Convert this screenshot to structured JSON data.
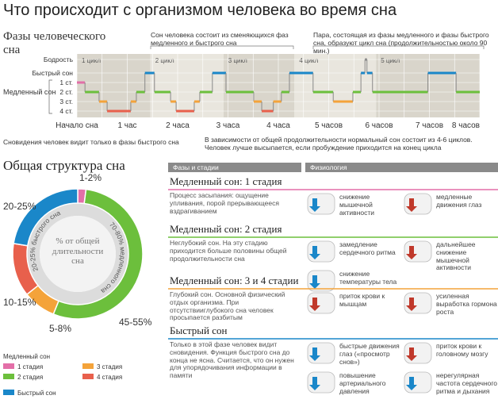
{
  "title": "Что происходит с организмом человека во время сна",
  "hypnogram": {
    "heading": "Фазы человеческого сна",
    "levels": [
      "Бодрость",
      "Быстрый сон",
      "1 ст.",
      "2 ст.",
      "3 ст.",
      "4 ст."
    ],
    "slow_label": "Медленный сон",
    "stage_colors": [
      "#888888",
      "#1a87c9",
      "#e36fa8",
      "#6cbf3c",
      "#f4a33a",
      "#e8604c"
    ],
    "x_labels": [
      "Начало сна",
      "1 час",
      "2 часа",
      "3 часа",
      "4 часа",
      "5 часов",
      "6 часов",
      "7 часов",
      "8 часов"
    ],
    "cycles": [
      {
        "label": "1 цикл",
        "start": 0,
        "end": 1.46
      },
      {
        "label": "2 цикл",
        "start": 1.46,
        "end": 2.91
      },
      {
        "label": "3 цикл",
        "start": 2.91,
        "end": 4.32
      },
      {
        "label": "4 цикл",
        "start": 4.32,
        "end": 5.94
      },
      {
        "label": "5 цикл",
        "start": 5.94,
        "end": 8
      }
    ],
    "segments": [
      {
        "stage": 2,
        "start": 0,
        "end": 0.16
      },
      {
        "stage": 3,
        "start": 0.16,
        "end": 0.44
      },
      {
        "stage": 4,
        "start": 0.44,
        "end": 0.6
      },
      {
        "stage": 5,
        "start": 0.6,
        "end": 1.07
      },
      {
        "stage": 4,
        "start": 1.07,
        "end": 1.18
      },
      {
        "stage": 3,
        "start": 1.18,
        "end": 1.35
      },
      {
        "stage": 1,
        "start": 1.35,
        "end": 1.54
      },
      {
        "stage": 3,
        "start": 1.54,
        "end": 1.86
      },
      {
        "stage": 4,
        "start": 1.86,
        "end": 1.97
      },
      {
        "stage": 5,
        "start": 1.97,
        "end": 2.33
      },
      {
        "stage": 4,
        "start": 2.33,
        "end": 2.44
      },
      {
        "stage": 3,
        "start": 2.44,
        "end": 2.69
      },
      {
        "stage": 1,
        "start": 2.69,
        "end": 2.96
      },
      {
        "stage": 3,
        "start": 2.96,
        "end": 3.51
      },
      {
        "stage": 4,
        "start": 3.51,
        "end": 3.67
      },
      {
        "stage": 5,
        "start": 3.67,
        "end": 3.9
      },
      {
        "stage": 4,
        "start": 3.9,
        "end": 4.06
      },
      {
        "stage": 3,
        "start": 4.06,
        "end": 4.22
      },
      {
        "stage": 1,
        "start": 4.22,
        "end": 4.69
      },
      {
        "stage": 3,
        "start": 4.69,
        "end": 5.09
      },
      {
        "stage": 4,
        "start": 5.09,
        "end": 5.48
      },
      {
        "stage": 3,
        "start": 5.48,
        "end": 5.64
      },
      {
        "stage": 1,
        "start": 5.64,
        "end": 5.72
      },
      {
        "stage": 0,
        "start": 5.72,
        "end": 5.76
      },
      {
        "stage": 1,
        "start": 5.76,
        "end": 5.87
      },
      {
        "stage": 3,
        "start": 5.87,
        "end": 6.97
      },
      {
        "stage": 1,
        "start": 6.97,
        "end": 7.53
      },
      {
        "stage": 3,
        "start": 7.53,
        "end": 8
      }
    ],
    "notes": [
      "Сон человека состоит из сменяющихся фаз медленного и быстрого сна",
      "Пара, состоящая из фазы медленного и фазы быстрого сна, образуют цикл сна (продолжительностью около 90 мин.)",
      "Сновидения человек видит только в фазы быстрого сна",
      "В зависимости от общей продолжительности нормальный сон состоит из 4-6 циклов. Человек лучше высыпается, если пробуждение приходится на конец цикла"
    ]
  },
  "donut": {
    "heading": "Общая структура сна",
    "center_label": "% от общей длительности сна",
    "slow_label": "70-80% медленного сна",
    "rem_label": "20-25% быстрого сна",
    "segments": [
      {
        "label": "1-2%",
        "value": 2,
        "color": "#e36fa8"
      },
      {
        "label": "45-55%",
        "value": 53,
        "color": "#6cbf3c"
      },
      {
        "label": "5-8%",
        "value": 8,
        "color": "#f4a33a"
      },
      {
        "label": "10-15%",
        "value": 13,
        "color": "#e8604c"
      },
      {
        "label": "20-25%",
        "value": 22,
        "color": "#1a87c9"
      }
    ]
  },
  "legend": {
    "heading": "Медленный сон",
    "items": [
      {
        "label": "1 стадия",
        "color": "#e36fa8"
      },
      {
        "label": "2 стадия",
        "color": "#6cbf3c"
      },
      {
        "label": "3 стадия",
        "color": "#f4a33a"
      },
      {
        "label": "4 стадия",
        "color": "#e8604c"
      },
      {
        "label": "Быстрый сон",
        "color": "#1a87c9"
      }
    ]
  },
  "table": {
    "headers": [
      "Фазы и стадии",
      "Физиология"
    ],
    "rows": [
      {
        "title": "Медленный сон: 1 стадия",
        "color": "#e36fa8",
        "description": "Процесс засыпания: ощущение упливания, порой прерывающееся вздрагиванием",
        "items": [
          "снижение мышечной активности",
          "медленные движения глаз"
        ]
      },
      {
        "title": "Медленный сон: 2 стадия",
        "color": "#6cbf3c",
        "description": "Неглубокий сон. На эту стадию приходится больше половины общей продолжительности сна",
        "items": [
          "замедление сердечного ритма",
          "дальнейшее снижение мышечной активности",
          "снижение температуры тела"
        ]
      },
      {
        "title": "Медленный сон: 3 и 4 стадии",
        "color": "#f4a33a",
        "description": "Глубокий сон. Основной физический отдых организма. При отсутствииглубокого сна человек просыпается разбитым",
        "items": [
          "приток крови к мышцам",
          "усиленная выработка гормона роста"
        ]
      },
      {
        "title": "Быстрый сон",
        "color": "#1a87c9",
        "description": "Только в этой фазе человек видит сновидения. Функция быстрого сна до конца не ясна. Считается, что он нужен для упорядочивания информации в памяти",
        "items": [
          "быстрые движения глаз («просмотр снов»)",
          "приток крови к головному мозгу",
          "повышение артериального давления",
          "нерегулярная частота сердечного ритма и дыхания"
        ]
      }
    ]
  }
}
